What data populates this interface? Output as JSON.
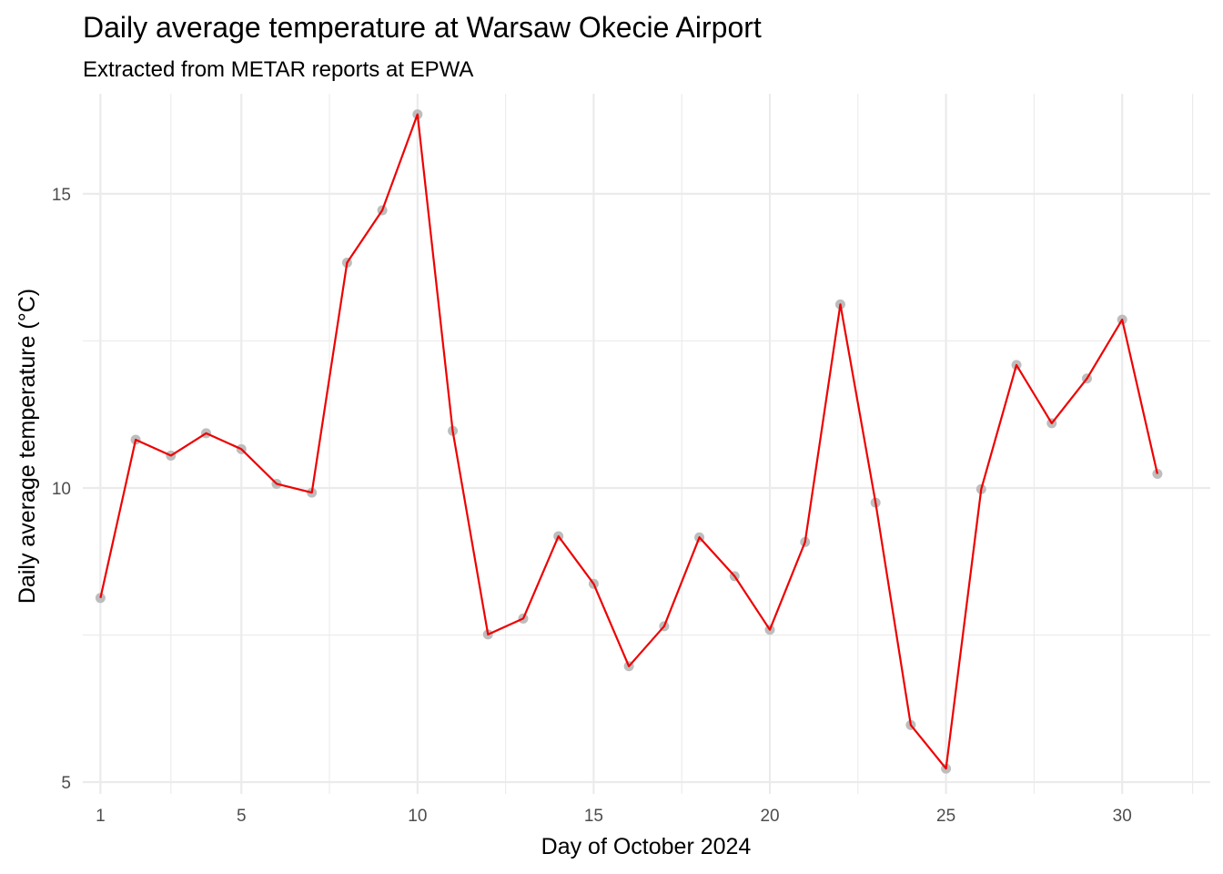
{
  "chart_data": {
    "type": "line",
    "title": "Daily average temperature at Warsaw Okecie Airport",
    "subtitle": "Extracted from METAR reports at EPWA",
    "xlabel": "Day of October 2024",
    "ylabel": "Daily average temperature (°C)",
    "xlim": [
      0.5,
      32.5
    ],
    "ylim": [
      4.8,
      16.7
    ],
    "x_ticks": [
      1,
      5,
      10,
      15,
      20,
      25,
      30
    ],
    "x_minor_ticks": [
      3,
      7.5,
      12.5,
      17.5,
      22.5,
      27.5,
      32
    ],
    "y_ticks": [
      5,
      10,
      15
    ],
    "y_minor_ticks": [
      7.5,
      12.5
    ],
    "grid": true,
    "legend": "none",
    "line_color": "#ee0000",
    "point_color": "#bdbdbd",
    "grid_color": "#ebebeb",
    "x": [
      1,
      2,
      3,
      4,
      5,
      6,
      7,
      8,
      9,
      10,
      11,
      12,
      13,
      14,
      15,
      16,
      17,
      18,
      19,
      20,
      21,
      22,
      23,
      24,
      25,
      26,
      27,
      28,
      29,
      30,
      31
    ],
    "values": [
      8.13,
      10.82,
      10.55,
      10.93,
      10.66,
      10.07,
      9.92,
      13.83,
      14.72,
      16.35,
      10.97,
      7.51,
      7.78,
      9.18,
      8.37,
      6.97,
      7.65,
      9.16,
      8.5,
      7.59,
      9.08,
      13.12,
      9.75,
      5.97,
      5.23,
      9.98,
      12.09,
      11.1,
      11.86,
      12.86,
      10.24
    ]
  }
}
